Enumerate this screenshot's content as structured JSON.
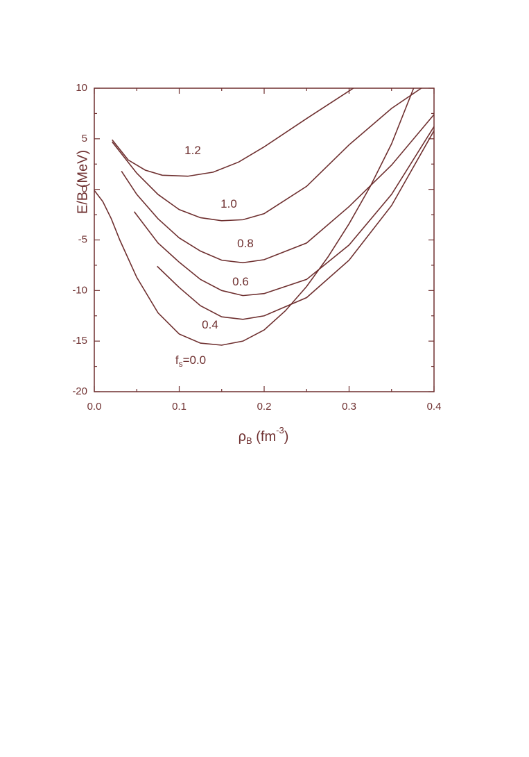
{
  "chart_data": {
    "type": "line",
    "xlabel": {
      "symbol": "ρ",
      "subscript": "B",
      "unit": " (fm",
      "superscript": "-3",
      "close": ")"
    },
    "ylabel": "E/B (MeV)",
    "color": "#6e2f2f",
    "xlim": [
      0,
      0.4
    ],
    "ylim": [
      -20,
      10
    ],
    "xticks": [
      {
        "value": 0,
        "label": "0.0"
      },
      {
        "value": 0.1,
        "label": "0.1"
      },
      {
        "value": 0.2,
        "label": "0.2"
      },
      {
        "value": 0.3,
        "label": "0.3"
      },
      {
        "value": 0.4,
        "label": "0.4"
      }
    ],
    "yticks": [
      -20,
      -15,
      -10,
      -5,
      0,
      5,
      10
    ],
    "xminorticks": [
      0.05,
      0.15,
      0.25,
      0.35
    ],
    "yminorticks": [
      -17.5,
      -12.5,
      -7.5,
      -2.5,
      2.5,
      7.5
    ],
    "series_label_symbol": "f",
    "series_label_subscript": "s",
    "series": [
      {
        "name": "1.2",
        "x": [
          0.021,
          0.04,
          0.06,
          0.08,
          0.11,
          0.14,
          0.17,
          0.2,
          0.25,
          0.305
        ],
        "values": [
          4.9,
          2.9,
          1.9,
          1.4,
          1.3,
          1.7,
          2.7,
          4.2,
          7.0,
          10
        ]
      },
      {
        "name": "1.0",
        "x": [
          0.021,
          0.05,
          0.075,
          0.1,
          0.125,
          0.15,
          0.175,
          0.2,
          0.25,
          0.3,
          0.35,
          0.385
        ],
        "values": [
          4.7,
          1.6,
          -0.5,
          -2.0,
          -2.8,
          -3.1,
          -3.0,
          -2.4,
          0.3,
          4.4,
          8.0,
          10
        ]
      },
      {
        "name": "0.8",
        "x": [
          0.032,
          0.05,
          0.075,
          0.1,
          0.125,
          0.15,
          0.175,
          0.2,
          0.25,
          0.3,
          0.35,
          0.4
        ],
        "values": [
          1.8,
          -0.5,
          -2.9,
          -4.8,
          -6.1,
          -7.0,
          -7.25,
          -6.95,
          -5.3,
          -1.7,
          2.4,
          7.4
        ]
      },
      {
        "name": "0.6",
        "x": [
          0.047,
          0.075,
          0.1,
          0.125,
          0.15,
          0.175,
          0.2,
          0.25,
          0.3,
          0.35,
          0.4
        ],
        "values": [
          -2.2,
          -5.3,
          -7.2,
          -8.9,
          -10.0,
          -10.5,
          -10.3,
          -8.9,
          -5.5,
          -0.5,
          6.2
        ]
      },
      {
        "name": "0.4",
        "x": [
          0.074,
          0.1,
          0.125,
          0.15,
          0.175,
          0.2,
          0.25,
          0.3,
          0.35,
          0.4
        ],
        "values": [
          -7.6,
          -9.7,
          -11.5,
          -12.6,
          -12.85,
          -12.5,
          -10.7,
          -7.0,
          -1.6,
          5.8
        ]
      },
      {
        "name": "=0.0",
        "x": [
          0,
          0.01,
          0.02,
          0.03,
          0.05,
          0.075,
          0.1,
          0.125,
          0.15,
          0.175,
          0.2,
          0.225,
          0.25,
          0.275,
          0.3,
          0.325,
          0.35,
          0.376
        ],
        "values": [
          -0.1,
          -1.2,
          -2.9,
          -5.0,
          -8.7,
          -12.2,
          -14.3,
          -15.2,
          -15.4,
          -15.0,
          -13.9,
          -12.0,
          -9.6,
          -6.7,
          -3.4,
          0.3,
          4.5,
          10
        ]
      }
    ]
  }
}
